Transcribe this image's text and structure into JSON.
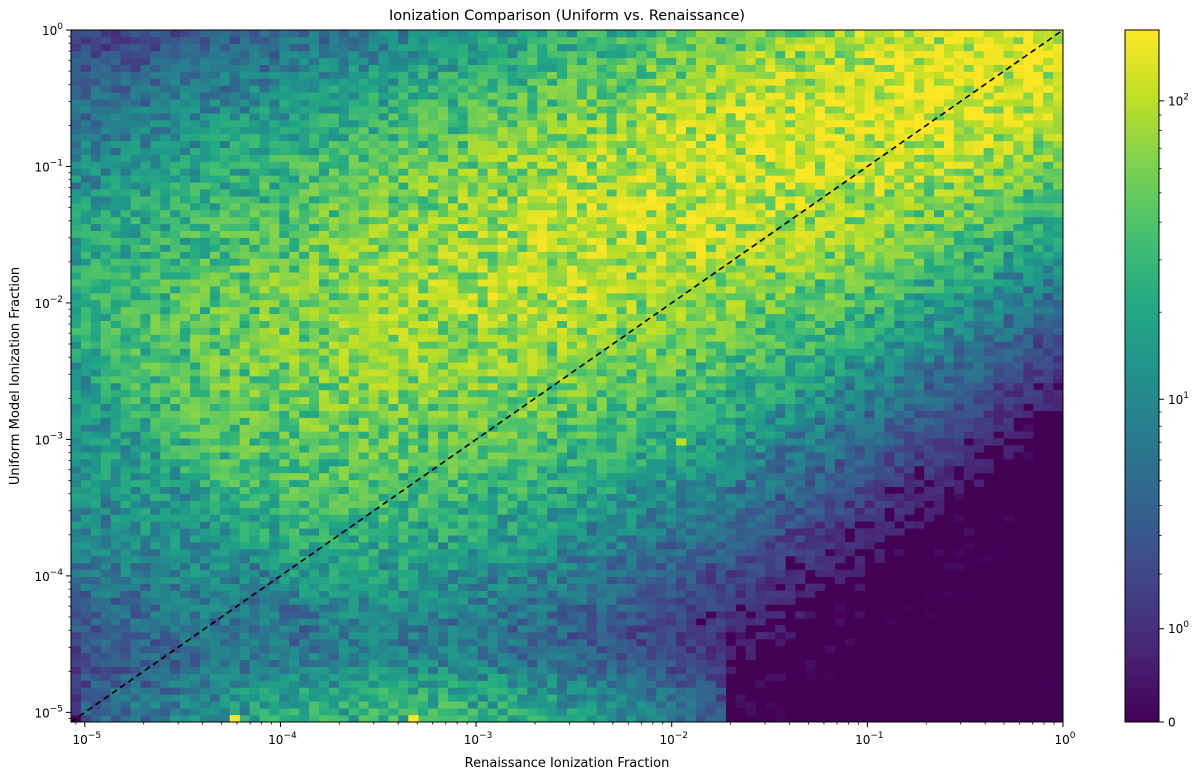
{
  "chart_data": {
    "type": "heatmap",
    "title": "Ionization Comparison (Uniform vs. Renaissance)",
    "xlabel": "Renaissance Ionization Fraction",
    "ylabel": "Uniform Model Ionization Fraction",
    "x_scale": "log",
    "y_scale": "log",
    "xlim": [
      8.5e-06,
      1
    ],
    "ylim": [
      8.5e-06,
      1
    ],
    "x_ticks": [
      {
        "value": 1e-05,
        "base": "10",
        "exp": "−5"
      },
      {
        "value": 0.0001,
        "base": "10",
        "exp": "−4"
      },
      {
        "value": 0.001,
        "base": "10",
        "exp": "−3"
      },
      {
        "value": 0.01,
        "base": "10",
        "exp": "−2"
      },
      {
        "value": 0.1,
        "base": "10",
        "exp": "−1"
      },
      {
        "value": 1,
        "base": "10",
        "exp": "0"
      }
    ],
    "y_ticks": [
      {
        "value": 1e-05,
        "base": "10",
        "exp": "−5"
      },
      {
        "value": 0.0001,
        "base": "10",
        "exp": "−4"
      },
      {
        "value": 0.001,
        "base": "10",
        "exp": "−3"
      },
      {
        "value": 0.01,
        "base": "10",
        "exp": "−2"
      },
      {
        "value": 0.1,
        "base": "10",
        "exp": "−1"
      },
      {
        "value": 1,
        "base": "10",
        "exp": "0"
      }
    ],
    "reference_line": {
      "style": "dashed",
      "color": "#000000",
      "from": [
        8.5e-06,
        8.5e-06
      ],
      "to": [
        1,
        1
      ]
    },
    "colormap": "viridis",
    "colorbar": {
      "scale": "symlog",
      "range": [
        0,
        170
      ],
      "ticks": [
        {
          "value": 0,
          "label": "0",
          "base": "",
          "exp": ""
        },
        {
          "value": 1,
          "label": "",
          "base": "10",
          "exp": "0"
        },
        {
          "value": 10,
          "label": "",
          "base": "10",
          "exp": "1"
        },
        {
          "value": 100,
          "label": "",
          "base": "10",
          "exp": "2"
        }
      ]
    },
    "background_color": "#440154",
    "bins": 100,
    "density_structure": {
      "main_ridge": {
        "from": [
          2e-05,
          0.001
        ],
        "to": [
          1,
          1
        ],
        "peak_count": 150
      },
      "hotspots": [
        {
          "x": 0.0012,
          "y": 0.011,
          "count": 170
        },
        {
          "x": 6e-05,
          "y": 8.8e-06,
          "count": 170
        },
        {
          "x": 0.0005,
          "y": 8.8e-06,
          "count": 170
        },
        {
          "x": 0.6,
          "y": 0.95,
          "count": 150
        },
        {
          "x": 0.011,
          "y": 0.001,
          "count": 100
        }
      ],
      "lower_band": {
        "x_range": [
          2e-05,
          0.01
        ],
        "y_range": [
          8.5e-06,
          5e-05
        ],
        "peak_count": 30
      }
    }
  }
}
